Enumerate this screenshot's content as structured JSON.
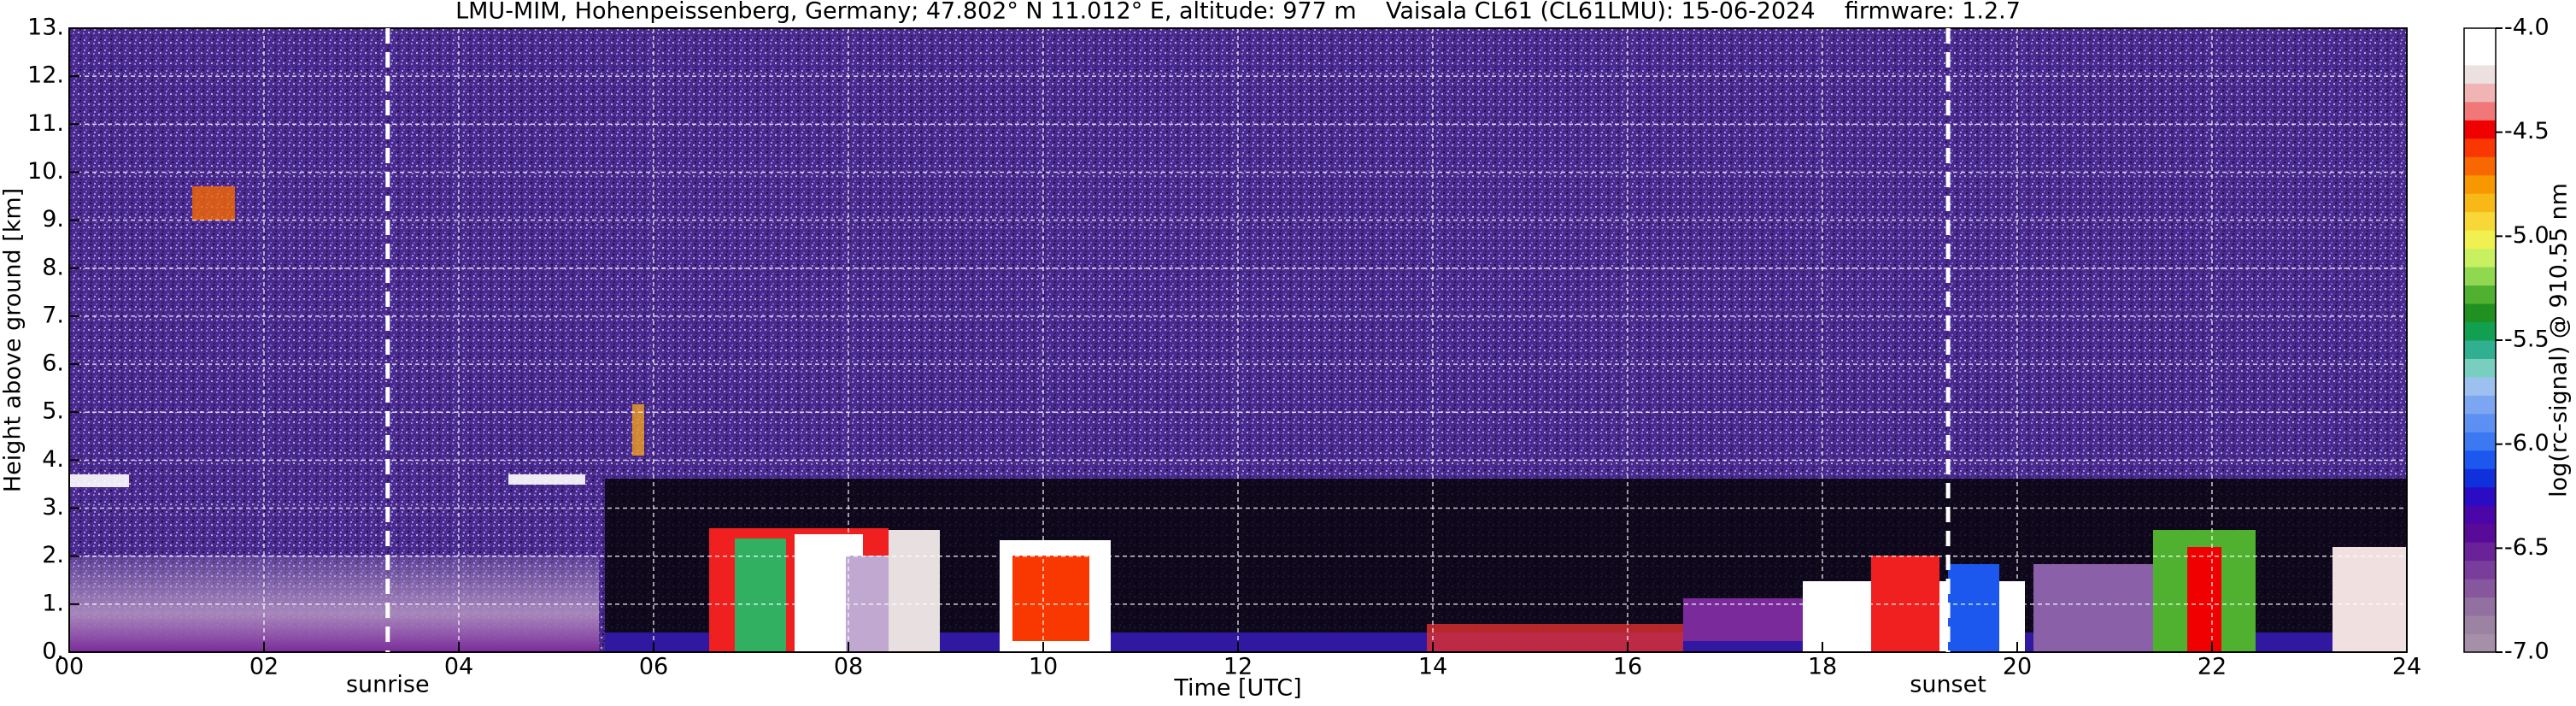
{
  "chart_data": {
    "type": "heatmap",
    "title": "LMU-MIM, Hohenpeissenberg, Germany; 47.802° N 11.012° E, altitude: 977 m    Vaisala CL61 (CL61LMU): 15-06-2024    firmware: 1.2.7",
    "x_label": "Time [UTC]",
    "y_label": "Height above ground [km]",
    "xlim": [
      0,
      24
    ],
    "xticks": [
      {
        "value": 0,
        "label": "00"
      },
      {
        "value": 2,
        "label": "02"
      },
      {
        "value": 4,
        "label": "04"
      },
      {
        "value": 6,
        "label": "06"
      },
      {
        "value": 8,
        "label": "08"
      },
      10,
      12,
      14,
      16,
      18,
      20,
      22,
      24
    ],
    "ylim": [
      0,
      13
    ],
    "yticks": [
      {
        "value": 0,
        "label": "0."
      },
      {
        "value": 1,
        "label": "1."
      },
      {
        "value": 2,
        "label": "2."
      },
      {
        "value": 3,
        "label": "3."
      },
      {
        "value": 4,
        "label": "4."
      },
      {
        "value": 5,
        "label": "5."
      },
      {
        "value": 6,
        "label": "6."
      },
      {
        "value": 7,
        "label": "7."
      },
      {
        "value": 8,
        "label": "8."
      },
      {
        "value": 9,
        "label": "9."
      },
      {
        "value": 10,
        "label": "10."
      },
      {
        "value": 11,
        "label": "11."
      },
      {
        "value": 12,
        "label": "12."
      },
      {
        "value": 13,
        "label": "13."
      }
    ],
    "grid": true,
    "markers": [
      {
        "label": "sunrise",
        "x": 3.27
      },
      {
        "label": "sunset",
        "x": 19.29
      }
    ],
    "colorbar": {
      "label": "log(rc-signal) @ 910.55 nm",
      "lim": [
        -7,
        -4
      ],
      "ticks": [
        {
          "value": -4,
          "label": "-4.0"
        },
        {
          "value": -4.5,
          "label": "-4.5"
        },
        {
          "value": -5,
          "label": "-5.0"
        },
        {
          "value": -5.5,
          "label": "-5.5"
        },
        {
          "value": -6,
          "label": "-6.0"
        },
        {
          "value": -6.5,
          "label": "-6.5"
        },
        {
          "value": -7,
          "label": "-7.0"
        }
      ],
      "colors": [
        "#a58fa9",
        "#9c82a3",
        "#92709f",
        "#86579d",
        "#793d9b",
        "#6a2298",
        "#5a0a98",
        "#4a06a8",
        "#2a0cc4",
        "#1030dc",
        "#1c58ee",
        "#3c78f2",
        "#5c90f2",
        "#7ca6f2",
        "#9cc0f0",
        "#78cfc0",
        "#30b090",
        "#10a050",
        "#209020",
        "#50b030",
        "#90d850",
        "#c8f060",
        "#f0f050",
        "#f8d838",
        "#f8b818",
        "#f89800",
        "#f86800",
        "#f83800",
        "#f00000",
        "#f07878",
        "#f0b4b4",
        "#ece0e0",
        "#ffffff",
        "#ffffff"
      ]
    }
  }
}
